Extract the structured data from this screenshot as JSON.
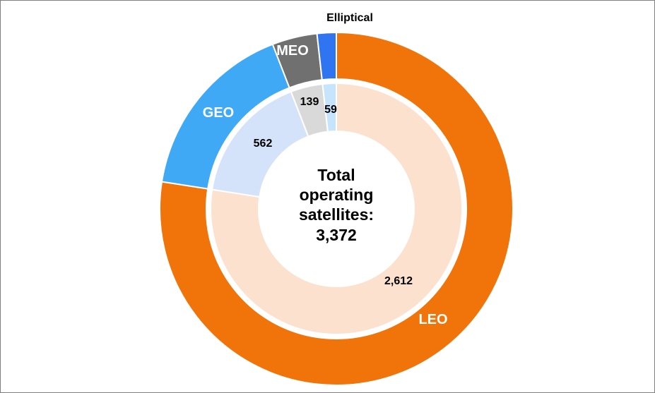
{
  "chart_data": {
    "type": "pie",
    "subtype": "nested-donut",
    "center_label": {
      "line1": "Total",
      "line2": "operating",
      "line3": "satellites:",
      "value": "3,372"
    },
    "total": 3372,
    "categories": [
      "LEO",
      "GEO",
      "MEO",
      "Elliptical"
    ],
    "values": [
      2612,
      562,
      139,
      59
    ],
    "value_labels": [
      "2,612",
      "562",
      "139",
      "59"
    ],
    "outer_colors": [
      "#F07409",
      "#3FA9F5",
      "#707070",
      "#2F74F0"
    ],
    "inner_colors": [
      "#FCE1CE",
      "#D5E3FA",
      "#D9D9D9",
      "#C6E4FB"
    ],
    "outer_label_colors": [
      "#FFFFFF",
      "#FFFFFF",
      "#FFFFFF",
      "#000000"
    ],
    "start_angle_deg": 0,
    "direction": "clockwise"
  }
}
